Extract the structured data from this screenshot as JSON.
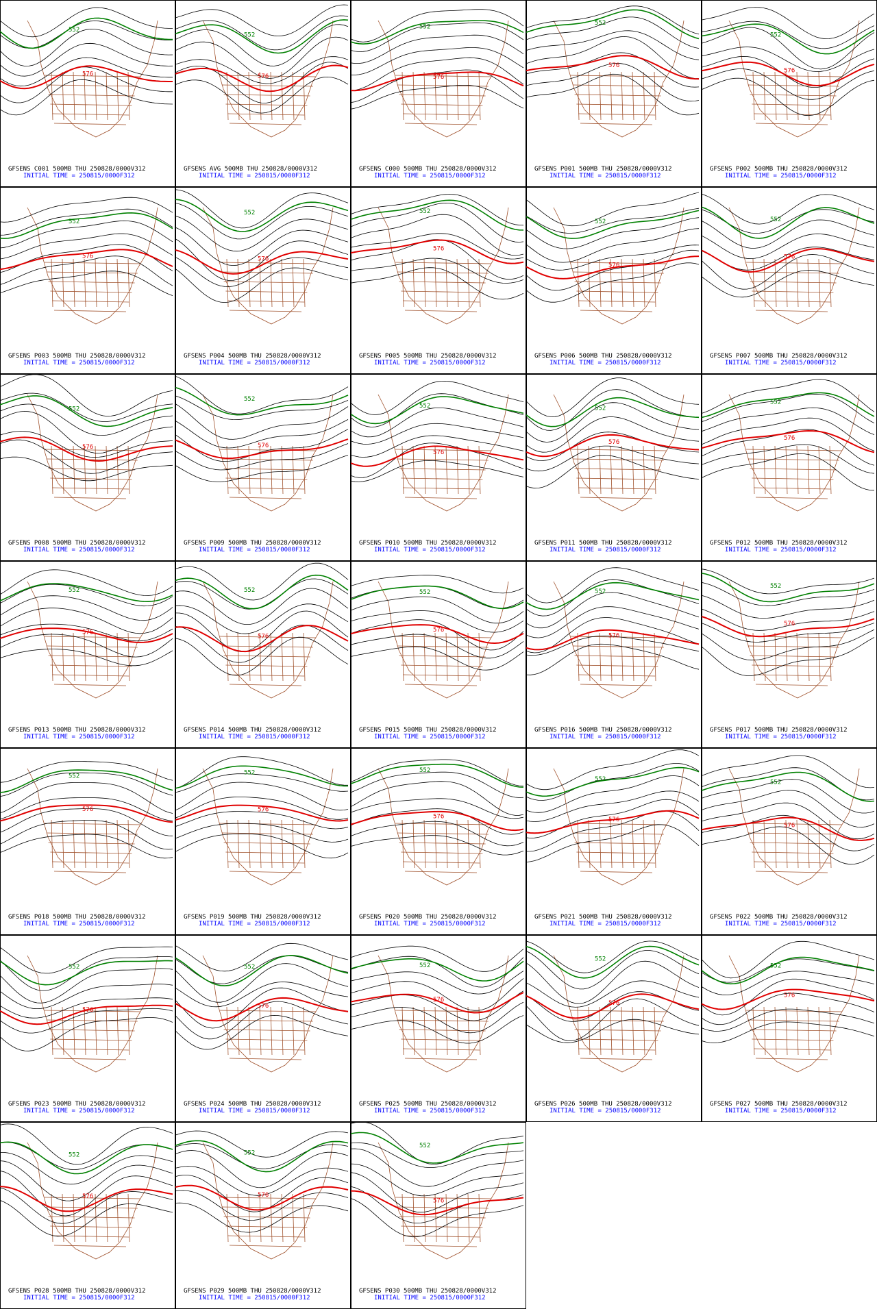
{
  "panels": [
    {
      "title": "GFSENS C001 500MB THU 250828/0000V312",
      "init": "INITIAL TIME = 250815/0000F312",
      "contour_labels": [
        "552",
        "576"
      ]
    },
    {
      "title": "GFSENS AVG 500MB THU 250828/0000V312",
      "init": "INITIAL TIME = 250815/0000F312",
      "contour_labels": [
        "552",
        "576"
      ]
    },
    {
      "title": "GFSENS C000 500MB THU 250828/0000V312",
      "init": "INITIAL TIME = 250815/0000F312",
      "contour_labels": [
        "552",
        "576"
      ]
    },
    {
      "title": "GFSENS P001 500MB THU 250828/0000V312",
      "init": "INITIAL TIME = 250815/0000F312",
      "contour_labels": [
        "552",
        "576"
      ]
    },
    {
      "title": "GFSENS P002 500MB THU 250828/0000V312",
      "init": "INITIAL TIME = 250815/0000F312",
      "contour_labels": [
        "552",
        "576"
      ]
    },
    {
      "title": "GFSENS P003 500MB THU 250828/0000V312",
      "init": "INITIAL TIME = 250815/0000F312",
      "contour_labels": [
        "552",
        "576"
      ]
    },
    {
      "title": "GFSENS P004 500MB THU 250828/0000V312",
      "init": "INITIAL TIME = 250815/0000F312",
      "contour_labels": [
        "552",
        "576"
      ]
    },
    {
      "title": "GFSENS P005 500MB THU 250828/0000V312",
      "init": "INITIAL TIME = 250815/0000F312",
      "contour_labels": [
        "552",
        "576"
      ]
    },
    {
      "title": "GFSENS P006 500MB THU 250828/0000V312",
      "init": "INITIAL TIME = 250815/0000F312",
      "contour_labels": [
        "552",
        "576"
      ]
    },
    {
      "title": "GFSENS P007 500MB THU 250828/0000V312",
      "init": "INITIAL TIME = 250815/0000F312",
      "contour_labels": [
        "552",
        "576"
      ]
    },
    {
      "title": "GFSENS P008 500MB THU 250828/0000V312",
      "init": "INITIAL TIME = 250815/0000F312",
      "contour_labels": [
        "552",
        "576"
      ]
    },
    {
      "title": "GFSENS P009 500MB THU 250828/0000V312",
      "init": "INITIAL TIME = 250815/0000F312",
      "contour_labels": [
        "552",
        "576"
      ]
    },
    {
      "title": "GFSENS P010 500MB THU 250828/0000V312",
      "init": "INITIAL TIME = 250815/0000F312",
      "contour_labels": [
        "552",
        "576"
      ]
    },
    {
      "title": "GFSENS P011 500MB THU 250828/0000V312",
      "init": "INITIAL TIME = 250815/0000F312",
      "contour_labels": [
        "552",
        "576"
      ]
    },
    {
      "title": "GFSENS P012 500MB THU 250828/0000V312",
      "init": "INITIAL TIME = 250815/0000F312",
      "contour_labels": [
        "552",
        "576"
      ]
    },
    {
      "title": "GFSENS P013 500MB THU 250828/0000V312",
      "init": "INITIAL TIME = 250815/0000F312",
      "contour_labels": [
        "552",
        "576"
      ]
    },
    {
      "title": "GFSENS P014 500MB THU 250828/0000V312",
      "init": "INITIAL TIME = 250815/0000F312",
      "contour_labels": [
        "552",
        "576"
      ]
    },
    {
      "title": "GFSENS P015 500MB THU 250828/0000V312",
      "init": "INITIAL TIME = 250815/0000F312",
      "contour_labels": [
        "552",
        "576"
      ]
    },
    {
      "title": "GFSENS P016 500MB THU 250828/0000V312",
      "init": "INITIAL TIME = 250815/0000F312",
      "contour_labels": [
        "552",
        "576"
      ]
    },
    {
      "title": "GFSENS P017 500MB THU 250828/0000V312",
      "init": "INITIAL TIME = 250815/0000F312",
      "contour_labels": [
        "552",
        "576"
      ]
    },
    {
      "title": "GFSENS P018 500MB THU 250828/0000V312",
      "init": "INITIAL TIME = 250815/0000F312",
      "contour_labels": [
        "552",
        "576"
      ]
    },
    {
      "title": "GFSENS P019 500MB THU 250828/0000V312",
      "init": "INITIAL TIME = 250815/0000F312",
      "contour_labels": [
        "552",
        "576"
      ]
    },
    {
      "title": "GFSENS P020 500MB THU 250828/0000V312",
      "init": "INITIAL TIME = 250815/0000F312",
      "contour_labels": [
        "552",
        "576"
      ]
    },
    {
      "title": "GFSENS P021 500MB THU 250828/0000V312",
      "init": "INITIAL TIME = 250815/0000F312",
      "contour_labels": [
        "552",
        "576"
      ]
    },
    {
      "title": "GFSENS P022 500MB THU 250828/0000V312",
      "init": "INITIAL TIME = 250815/0000F312",
      "contour_labels": [
        "552",
        "576"
      ]
    },
    {
      "title": "GFSENS P023 500MB THU 250828/0000V312",
      "init": "INITIAL TIME = 250815/0000F312",
      "contour_labels": [
        "552",
        "576"
      ]
    },
    {
      "title": "GFSENS P024 500MB THU 250828/0000V312",
      "init": "INITIAL TIME = 250815/0000F312",
      "contour_labels": [
        "552",
        "576"
      ]
    },
    {
      "title": "GFSENS P025 500MB THU 250828/0000V312",
      "init": "INITIAL TIME = 250815/0000F312",
      "contour_labels": [
        "552",
        "576"
      ]
    },
    {
      "title": "GFSENS P026 500MB THU 250828/0000V312",
      "init": "INITIAL TIME = 250815/0000F312",
      "contour_labels": [
        "552",
        "576"
      ]
    },
    {
      "title": "GFSENS P027 500MB THU 250828/0000V312",
      "init": "INITIAL TIME = 250815/0000F312",
      "contour_labels": [
        "552",
        "576"
      ]
    },
    {
      "title": "GFSENS P028 500MB THU 250828/0000V312",
      "init": "INITIAL TIME = 250815/0000F312",
      "contour_labels": [
        "552",
        "576"
      ]
    },
    {
      "title": "GFSENS P029 500MB THU 250828/0000V312",
      "init": "INITIAL TIME = 250815/0000F312",
      "contour_labels": [
        "552",
        "576"
      ]
    },
    {
      "title": "GFSENS P030 500MB THU 250828/0000V312",
      "init": "INITIAL TIME = 250815/0000F312",
      "contour_labels": [
        "552",
        "576"
      ]
    }
  ]
}
